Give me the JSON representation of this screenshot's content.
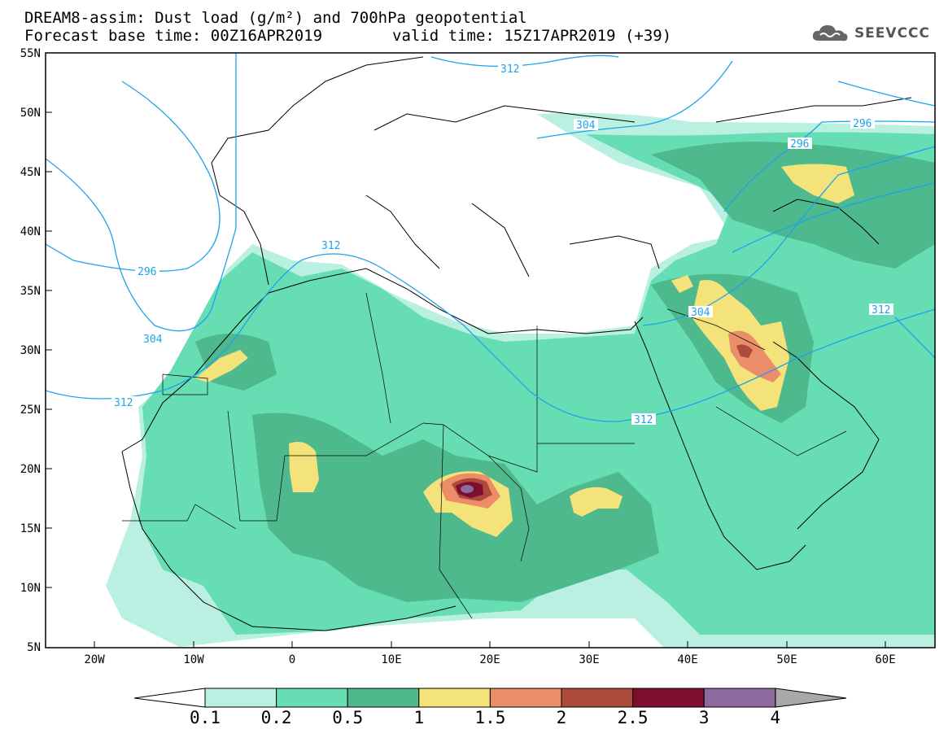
{
  "title": {
    "line1": "DREAM8-assim: Dust load (g/m²) and 700hPa geopotential",
    "line2": "Forecast base time: 00Z16APR2019",
    "line2b": "valid time: 15Z17APR2019 (+39)"
  },
  "logo": {
    "text": "SEEVCCC",
    "icon": "cloud-logo-icon"
  },
  "axes": {
    "lat_ticks": [
      "55N",
      "50N",
      "45N",
      "40N",
      "35N",
      "30N",
      "25N",
      "20N",
      "15N",
      "10N",
      "5N"
    ],
    "lon_ticks": [
      "20W",
      "10W",
      "0",
      "10E",
      "20E",
      "30E",
      "40E",
      "50E",
      "60E"
    ]
  },
  "contour_labels": [
    "312",
    "304",
    "296",
    "296",
    "296",
    "312",
    "304",
    "304",
    "312",
    "312",
    "312"
  ],
  "colorbar": {
    "labels": [
      "0.1",
      "0.2",
      "0.5",
      "1",
      "1.5",
      "2",
      "2.5",
      "3",
      "4"
    ],
    "colors": [
      "#b9f0e2",
      "#66ddb2",
      "#4fb98e",
      "#f4e37a",
      "#eb8d68",
      "#ad4a3c",
      "#7d0f2e",
      "#8e6a9e"
    ]
  }
}
